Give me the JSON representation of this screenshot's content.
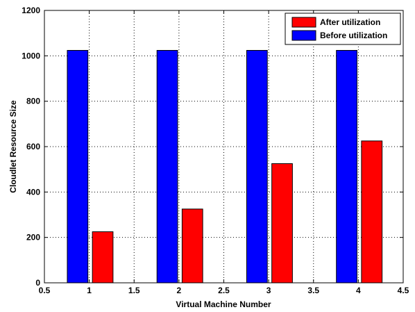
{
  "chart_data": {
    "type": "bar",
    "title": "",
    "xlabel": "Virtual Machine Number",
    "ylabel": "Cloudlet Resource Size",
    "xlim": [
      0.5,
      4.5
    ],
    "ylim": [
      0,
      1200
    ],
    "x_ticks": [
      "0.5",
      "1",
      "1.5",
      "2",
      "2.5",
      "3",
      "3.5",
      "4",
      "4.5"
    ],
    "y_ticks": [
      "0",
      "200",
      "400",
      "600",
      "800",
      "1000",
      "1200"
    ],
    "categories": [
      1,
      2,
      3,
      4
    ],
    "grid": true,
    "legend_position": "top-right",
    "series": [
      {
        "name": "Before utilization",
        "color": "#0000ff",
        "offset": -0.13,
        "values": [
          1024,
          1024,
          1024,
          1024
        ]
      },
      {
        "name": "After utilization",
        "color": "#ff0000",
        "offset": 0.15,
        "values": [
          225,
          325,
          525,
          625
        ]
      }
    ],
    "legend_order": [
      "After utilization",
      "Before utilization"
    ]
  }
}
